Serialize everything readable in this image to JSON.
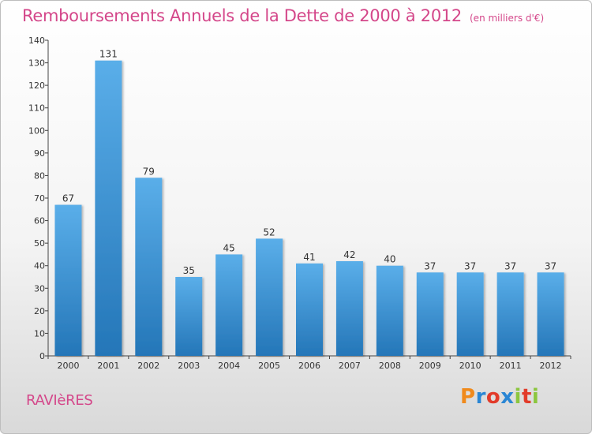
{
  "header": {
    "title": "Remboursements Annuels de la Dette de 2000 à 2012",
    "unit": "(en milliers d'€)"
  },
  "footer": {
    "commune": "RAVIèRES",
    "brand": "Proxiti",
    "brand_colors": [
      "#f08a1c",
      "#2a86d4",
      "#e23b2a",
      "#2a86d4",
      "#8cc63f",
      "#e23b2a",
      "#8cc63f"
    ]
  },
  "chart_data": {
    "type": "bar",
    "categories": [
      "2000",
      "2001",
      "2002",
      "2003",
      "2004",
      "2005",
      "2006",
      "2007",
      "2008",
      "2009",
      "2010",
      "2011",
      "2012"
    ],
    "values": [
      67,
      131,
      79,
      35,
      45,
      52,
      41,
      42,
      40,
      37,
      37,
      37,
      37
    ],
    "ylim": [
      0,
      140
    ],
    "yticks": [
      0,
      10,
      20,
      30,
      40,
      50,
      60,
      70,
      80,
      90,
      100,
      110,
      120,
      130,
      140
    ],
    "grid": false,
    "bar_color_top": "#5aaee9",
    "bar_color_bottom": "#2476b8",
    "label_color": "#333333"
  }
}
